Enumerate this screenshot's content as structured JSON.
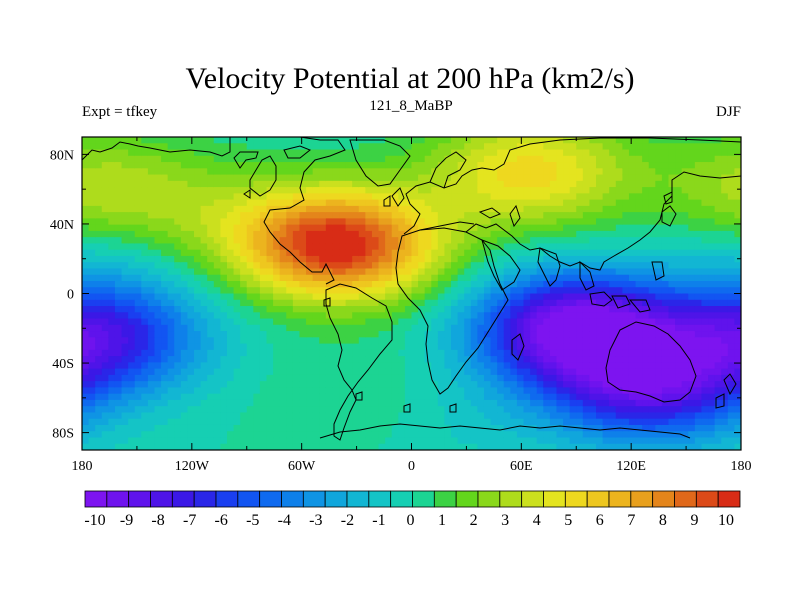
{
  "chart_data": {
    "type": "heatmap",
    "title": "Velocity Potential at 200 hPa (km2/s)",
    "left_string": "Expt = tfkey",
    "center_string": "121_8_MaBP",
    "right_string": "DJF",
    "xlim": [
      -180,
      180
    ],
    "ylim": [
      -90,
      90
    ],
    "x_ticks": [
      {
        "value": -180,
        "label": "180"
      },
      {
        "value": -120,
        "label": "120W"
      },
      {
        "value": -60,
        "label": "60W"
      },
      {
        "value": 0,
        "label": "0"
      },
      {
        "value": 60,
        "label": "60E"
      },
      {
        "value": 120,
        "label": "120E"
      },
      {
        "value": 180,
        "label": "180"
      }
    ],
    "y_ticks": [
      {
        "value": 80,
        "label": "80N"
      },
      {
        "value": 40,
        "label": "40N"
      },
      {
        "value": 0,
        "label": "0"
      },
      {
        "value": -40,
        "label": "40S"
      },
      {
        "value": -80,
        "label": "80S"
      }
    ],
    "colorbar": {
      "min": -10,
      "max": 10,
      "step": 0.5,
      "labels": [
        "-10",
        "-9",
        "-8",
        "-7",
        "-6",
        "-5",
        "-4",
        "-3",
        "-2",
        "-1",
        "0",
        "1",
        "2",
        "3",
        "4",
        "5",
        "6",
        "7",
        "8",
        "9",
        "10"
      ]
    },
    "field_features": [
      {
        "lon": -40,
        "lat": 28,
        "value": 10
      },
      {
        "lon": 65,
        "lat": 70,
        "value": 5
      },
      {
        "lon": -170,
        "lat": 60,
        "value": 3
      },
      {
        "lon": -110,
        "lat": 45,
        "value": 1.5
      },
      {
        "lon": 90,
        "lat": -20,
        "value": -10
      },
      {
        "lon": 130,
        "lat": -55,
        "value": -7
      },
      {
        "lon": -170,
        "lat": -25,
        "value": -7
      },
      {
        "lon": -170,
        "lat": 20,
        "value": -1
      },
      {
        "lon": 20,
        "lat": -70,
        "value": -1
      },
      {
        "lon": -20,
        "lat": -60,
        "value": 1
      }
    ],
    "coastlines": true,
    "grid": false
  }
}
